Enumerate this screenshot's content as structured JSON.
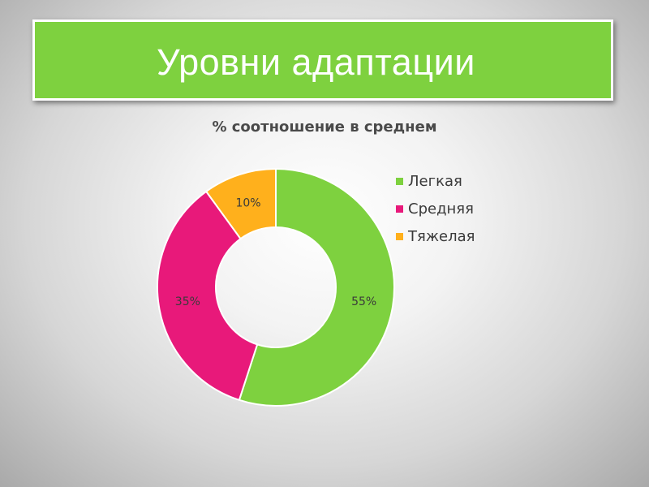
{
  "slide": {
    "title": "Уровни адаптации"
  },
  "colors": {
    "banner": "#7ed13f",
    "banner_text": "#ffffff"
  },
  "chart_data": {
    "type": "pie",
    "variant": "doughnut",
    "title": "% соотношение в среднем",
    "legend_position": "right",
    "series": [
      {
        "name": "Легкая",
        "value": 55,
        "label": "55%",
        "color": "#7ed13f"
      },
      {
        "name": "Средняя",
        "value": 35,
        "label": "35%",
        "color": "#e8197a"
      },
      {
        "name": "Тяжелая",
        "value": 10,
        "label": "10%",
        "color": "#ffb01c"
      }
    ]
  }
}
